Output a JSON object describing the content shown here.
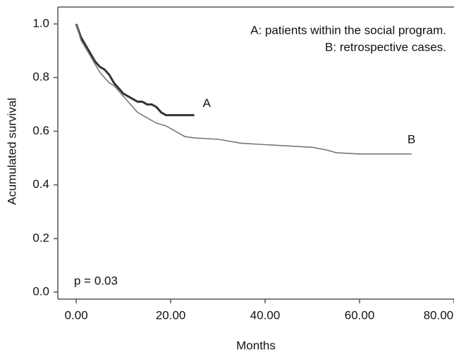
{
  "chart_data": {
    "type": "line",
    "x_label": "Months",
    "y_label": "Acumulated survival",
    "annotation": "p = 0.03",
    "xlim": [
      -3.9,
      80
    ],
    "ylim": [
      -0.026,
      1.063
    ],
    "xticks": [
      {
        "value": 0,
        "label": "0.00"
      },
      {
        "value": 20,
        "label": "20.00"
      },
      {
        "value": 40,
        "label": "40.00"
      },
      {
        "value": 60,
        "label": "60.00"
      },
      {
        "value": 80,
        "label": "80.00"
      }
    ],
    "yticks": [
      {
        "value": 0,
        "label": "0.0"
      },
      0.2,
      0.4,
      0.6,
      0.8,
      {
        "value": 1,
        "label": "1.0"
      }
    ],
    "legend_position": "upper right",
    "series": [
      {
        "name": "A: patients within the social program.",
        "label": "A",
        "color": "#333333",
        "x": [
          0,
          1,
          2,
          3,
          4,
          5,
          6,
          7,
          8,
          9,
          10,
          11,
          12,
          13,
          14,
          15,
          16,
          17,
          18,
          19,
          22,
          25
        ],
        "values": [
          1.0,
          0.95,
          0.92,
          0.89,
          0.86,
          0.84,
          0.83,
          0.81,
          0.78,
          0.76,
          0.74,
          0.73,
          0.72,
          0.71,
          0.71,
          0.7,
          0.7,
          0.69,
          0.67,
          0.66,
          0.66,
          0.66
        ]
      },
      {
        "name": "B: retrospective cases.",
        "label": "B",
        "color": "#777777",
        "x": [
          0,
          1,
          2,
          3,
          4,
          5,
          6,
          7,
          8,
          9,
          10,
          11,
          12,
          13,
          14,
          15,
          17,
          19,
          21,
          23,
          25,
          30,
          35,
          40,
          45,
          50,
          53,
          55,
          60,
          65,
          71
        ],
        "values": [
          1.0,
          0.94,
          0.91,
          0.88,
          0.85,
          0.82,
          0.8,
          0.78,
          0.77,
          0.75,
          0.73,
          0.71,
          0.69,
          0.67,
          0.66,
          0.65,
          0.63,
          0.62,
          0.6,
          0.58,
          0.575,
          0.57,
          0.555,
          0.55,
          0.545,
          0.54,
          0.53,
          0.52,
          0.515,
          0.515,
          0.515
        ]
      }
    ]
  }
}
